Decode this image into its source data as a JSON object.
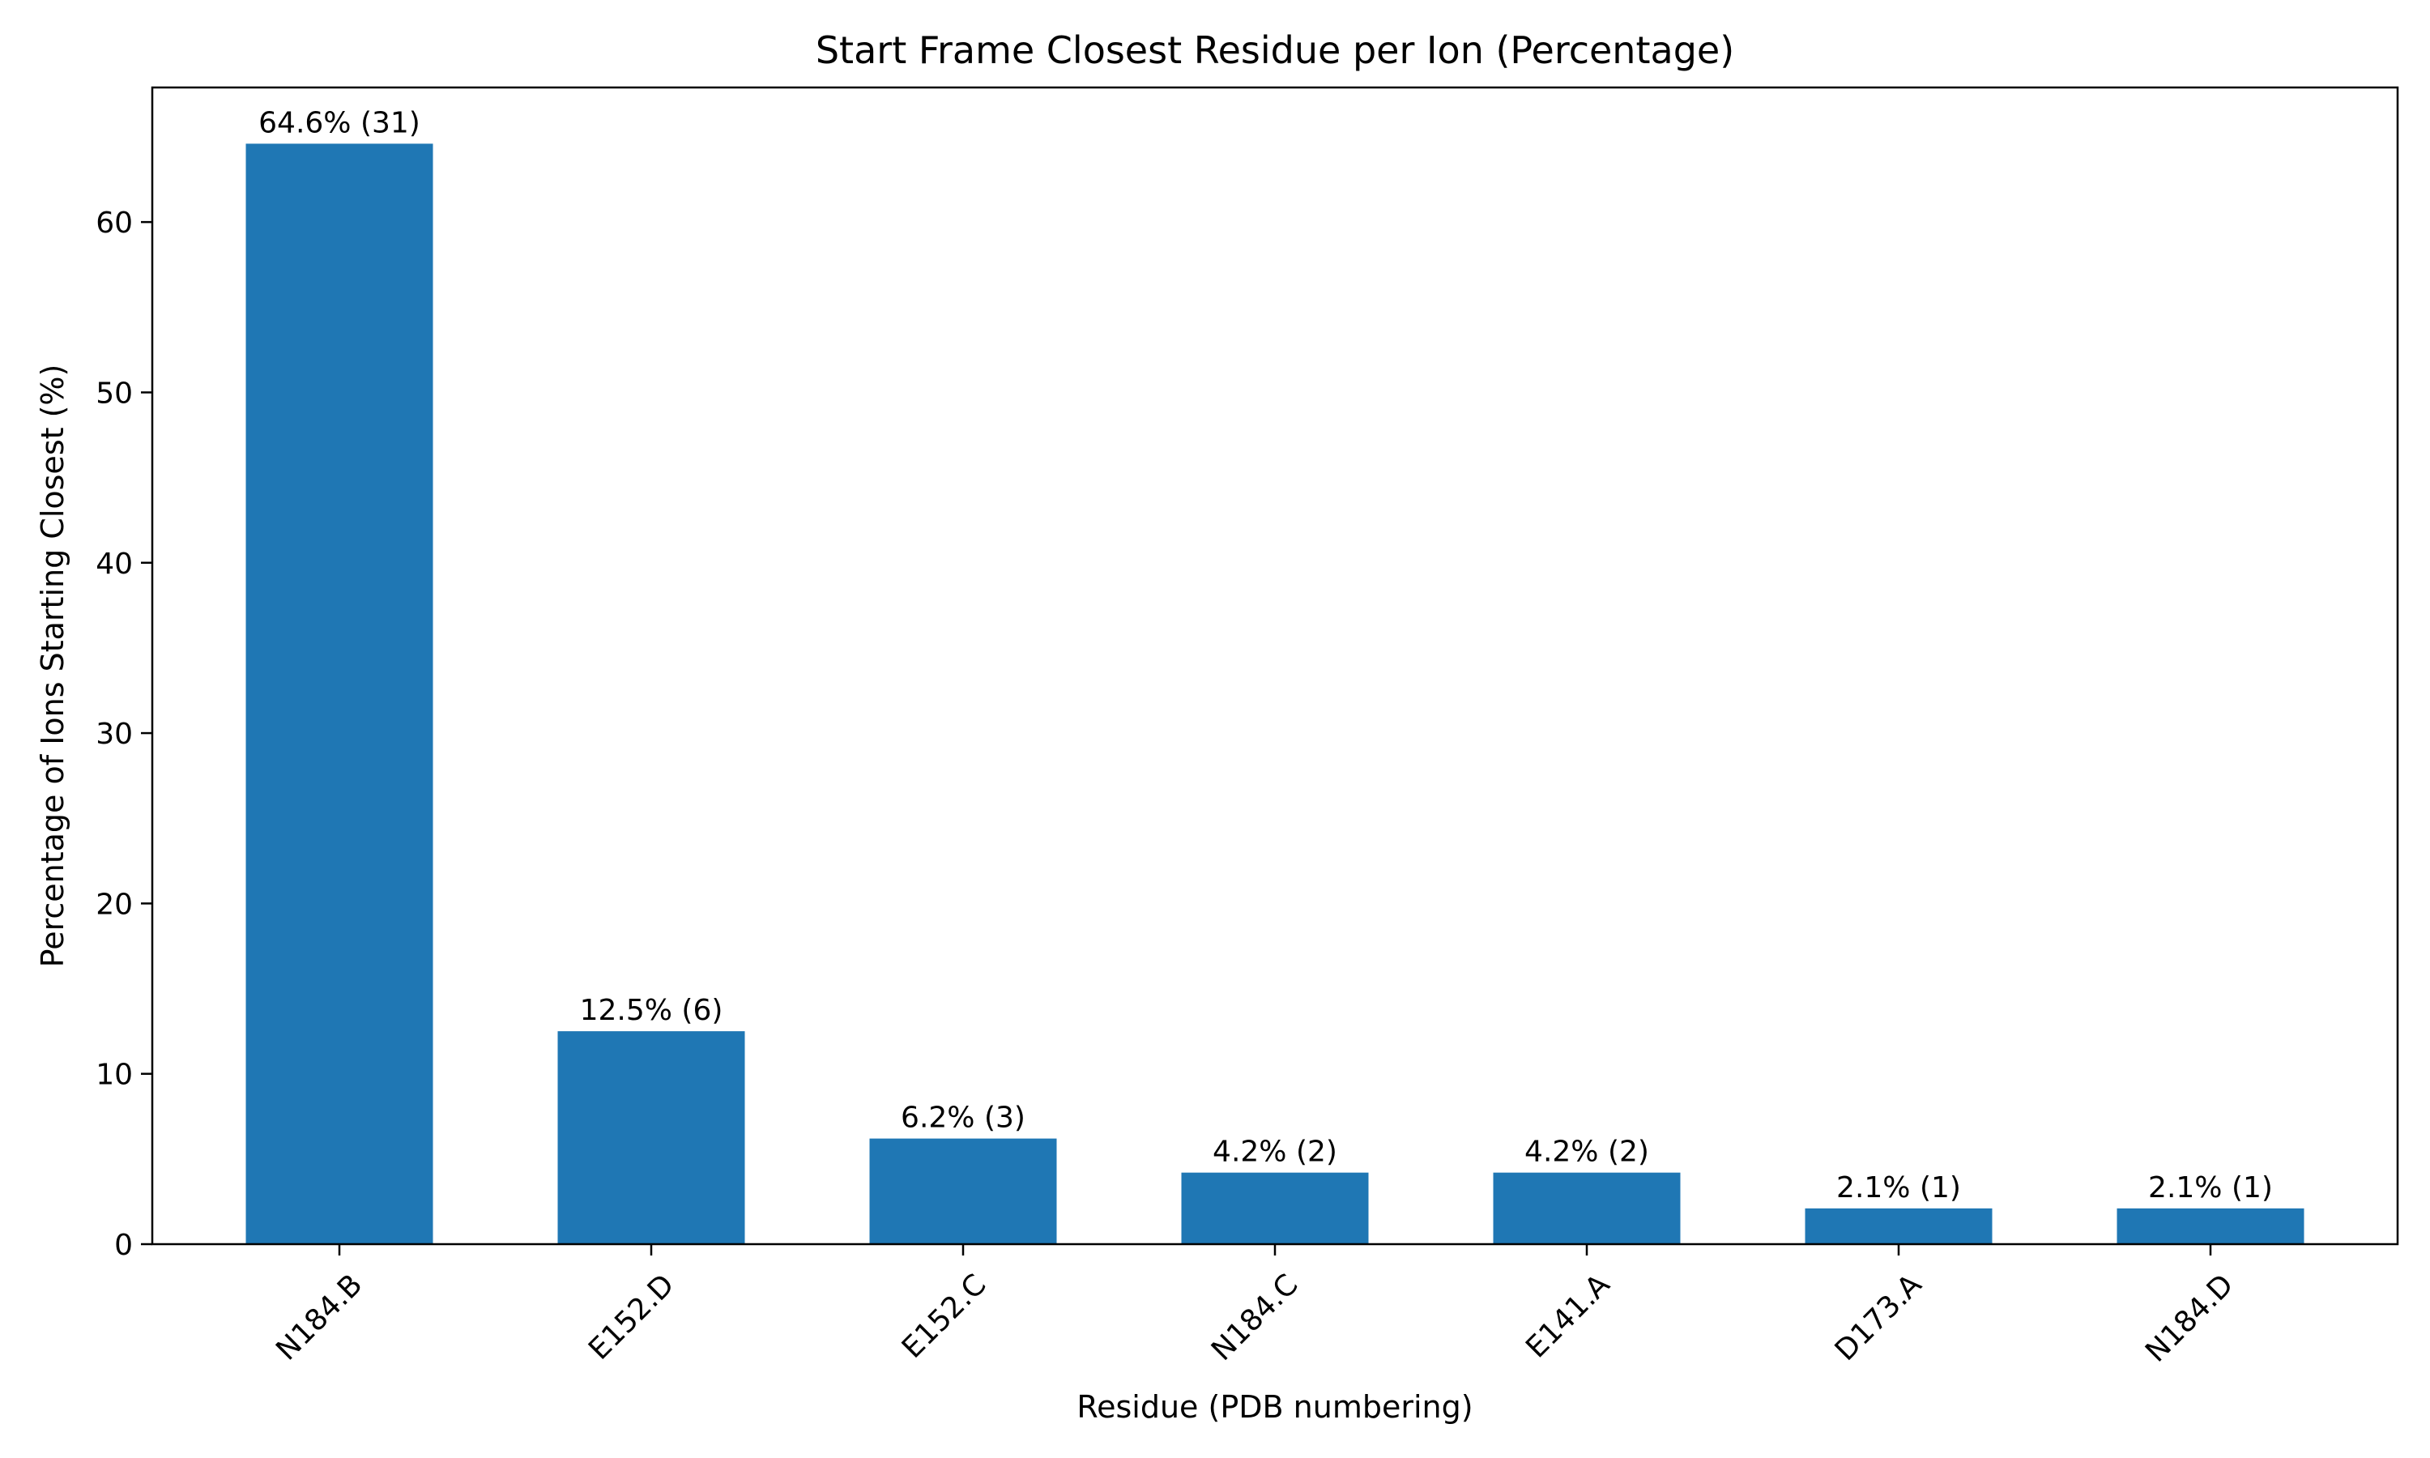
{
  "chart_data": {
    "type": "bar",
    "title": "Start Frame Closest Residue per Ion (Percentage)",
    "xlabel": "Residue (PDB numbering)",
    "ylabel": "Percentage of Ions Starting Closest (%)",
    "categories": [
      "N184.B",
      "E152.D",
      "E152.C",
      "N184.C",
      "E141.A",
      "D173.A",
      "N184.D"
    ],
    "values": [
      64.6,
      12.5,
      6.2,
      4.2,
      4.2,
      2.1,
      2.1
    ],
    "data_labels": [
      "64.6% (31)",
      "12.5% (6)",
      "6.2% (3)",
      "4.2% (2)",
      "4.2% (2)",
      "2.1% (1)",
      "2.1% (1)"
    ],
    "ylim": [
      0,
      67.9
    ],
    "yticks": [
      0,
      10,
      20,
      30,
      40,
      50,
      60
    ],
    "bar_color": "#1f77b4",
    "grid": false,
    "legend": "none"
  }
}
